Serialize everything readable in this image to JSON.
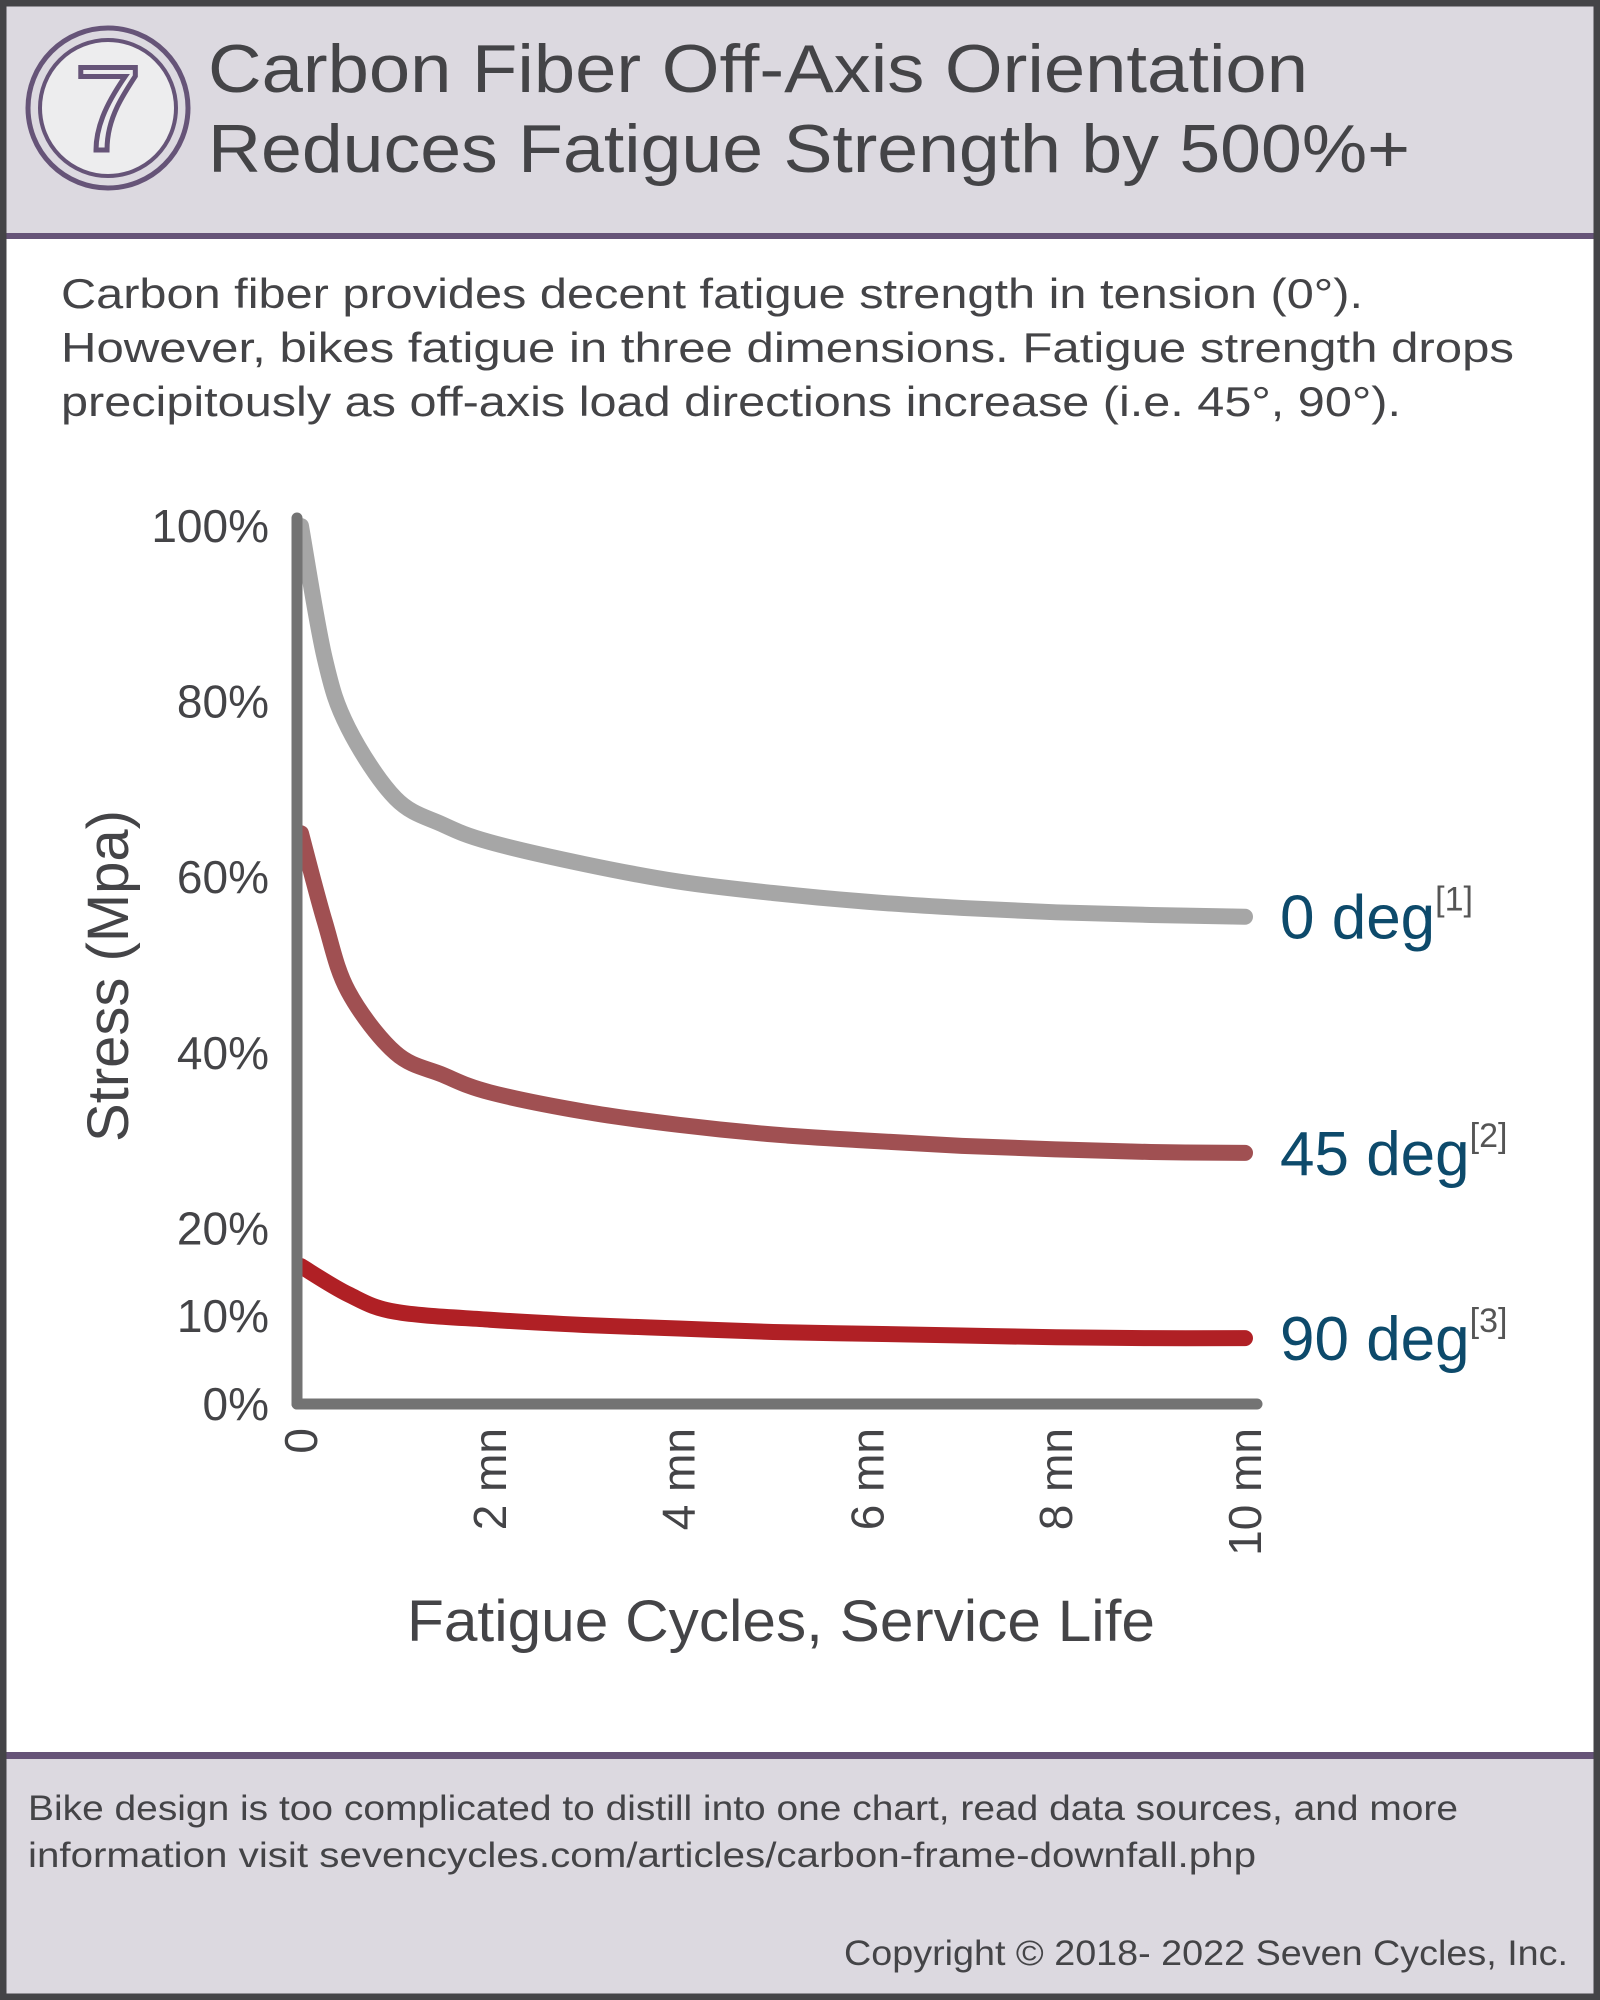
{
  "header": {
    "title_lines": [
      "Carbon Fiber Off-Axis Orientation",
      "Reduces Fatigue Strength by 500%+"
    ],
    "logo_glyph": "7"
  },
  "intro": {
    "lines": [
      "Carbon fiber provides decent fatigue strength in tension (0°).",
      "However, bikes fatigue in three dimensions.  Fatigue strength drops",
      "precipitously as off-axis load directions increase (i.e. 45°, 90°)."
    ]
  },
  "chart_data": {
    "type": "line",
    "xlabel": "Fatigue Cycles, Service Life",
    "ylabel": "Stress (Mpa)",
    "x_unit": "million cycles",
    "xlim": [
      0,
      10
    ],
    "ylim": [
      0,
      100
    ],
    "x_ticks": [
      0,
      2,
      4,
      6,
      8,
      10
    ],
    "x_tick_labels": [
      "0",
      "2 mn",
      "4 mn",
      "6 mn",
      "8 mn",
      "10 mn"
    ],
    "y_ticks": [
      0,
      10,
      20,
      40,
      60,
      80,
      100
    ],
    "y_tick_labels": [
      "0%",
      "10%",
      "20%",
      "40%",
      "60%",
      "80%",
      "100%"
    ],
    "grid": false,
    "legend": "inline-right",
    "series": [
      {
        "name": "0 deg",
        "ref": "[1]",
        "color": "#a6a6a6",
        "x": [
          0,
          0.25,
          0.5,
          1,
          1.5,
          2,
          3,
          4,
          5,
          6,
          7,
          8,
          9,
          10
        ],
        "y": [
          100,
          85,
          77,
          69,
          66,
          64,
          61.5,
          59.5,
          58.2,
          57.2,
          56.5,
          56,
          55.7,
          55.5
        ]
      },
      {
        "name": "45 deg",
        "ref": "[2]",
        "color": "#a05052",
        "x": [
          0,
          0.25,
          0.5,
          1,
          1.5,
          2,
          3,
          4,
          5,
          6,
          7,
          8,
          9,
          10
        ],
        "y": [
          65,
          55,
          47,
          40,
          37.5,
          35.5,
          33.3,
          31.8,
          30.7,
          30,
          29.4,
          29,
          28.7,
          28.6
        ]
      },
      {
        "name": "90 deg",
        "ref": "[3]",
        "color": "#b02025",
        "x": [
          0,
          0.5,
          1,
          2,
          3,
          4,
          5,
          6,
          7,
          8,
          9,
          10
        ],
        "y": [
          15.7,
          12.5,
          10.5,
          9.6,
          9,
          8.6,
          8.2,
          8,
          7.8,
          7.6,
          7.5,
          7.5
        ]
      }
    ]
  },
  "footer": {
    "lines": [
      "Bike design is too complicated to distill into one chart, read data sources, and more",
      "information visit sevencycles.com/articles/carbon-frame-downfall.php"
    ],
    "copyright": "Copyright © 2018- 2022 Seven Cycles, Inc."
  },
  "colors": {
    "header_bg": "#dcd9e0",
    "accent_purple": "#665478",
    "text": "#444447",
    "series_label": "#0d4a6b",
    "axis": "#737373"
  }
}
